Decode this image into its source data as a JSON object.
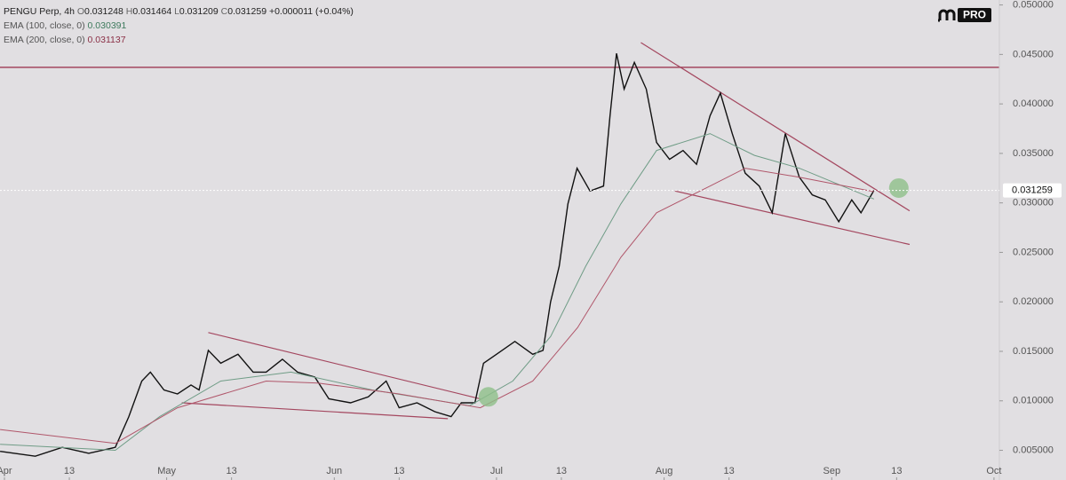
{
  "chart_data": {
    "type": "line",
    "header": {
      "symbol": "PENGU Perp, 4h",
      "o_label": "O",
      "o": "0.031248",
      "h_label": "H",
      "h": "0.031464",
      "l_label": "L",
      "l": "0.031209",
      "c_label": "C",
      "c": "0.031259",
      "change": "+0.000011 (+0.04%)"
    },
    "ema_labels": [
      {
        "name": "EMA (100, close, 0)",
        "value": "0.030391"
      },
      {
        "name": "EMA (200, close, 0)",
        "value": "0.031137"
      }
    ],
    "logo": "PRO",
    "xlim": [
      -0.82,
      184
    ],
    "ylim": [
      0.002,
      0.0505
    ],
    "xticks": [
      {
        "value": 0,
        "label": "Apr"
      },
      {
        "value": 12,
        "label": "13"
      },
      {
        "value": 30,
        "label": "May"
      },
      {
        "value": 42,
        "label": "13"
      },
      {
        "value": 61,
        "label": "Jun"
      },
      {
        "value": 73,
        "label": "13"
      },
      {
        "value": 91,
        "label": "Jul"
      },
      {
        "value": 103,
        "label": "13"
      },
      {
        "value": 122,
        "label": "Aug"
      },
      {
        "value": 134,
        "label": "13"
      },
      {
        "value": 153,
        "label": "Sep"
      },
      {
        "value": 165,
        "label": "13"
      },
      {
        "value": 183,
        "label": "Oct"
      }
    ],
    "yticks": [
      {
        "value": 0.005,
        "label": "0.005000"
      },
      {
        "value": 0.01,
        "label": "0.010000"
      },
      {
        "value": 0.015,
        "label": "0.015000"
      },
      {
        "value": 0.02,
        "label": "0.020000"
      },
      {
        "value": 0.025,
        "label": "0.025000"
      },
      {
        "value": 0.03,
        "label": "0.030000"
      },
      {
        "value": 0.035,
        "label": "0.035000"
      },
      {
        "value": 0.04,
        "label": "0.040000"
      },
      {
        "value": 0.045,
        "label": "0.045000"
      },
      {
        "value": 0.05,
        "label": "0.050000"
      }
    ],
    "series": [
      {
        "color": "#111111",
        "x": [
          -0.8,
          5.7,
          10.7,
          15.6,
          20.5,
          23,
          25.4,
          27,
          29.5,
          32,
          34.5,
          36,
          37.7,
          40,
          43.2,
          46,
          48.4,
          51.4,
          54.2,
          57.4,
          60,
          64,
          67.3,
          70.6,
          73,
          76.3,
          79.6,
          82.6,
          84.5,
          87,
          88.6,
          91,
          94.4,
          97.7,
          99.6,
          101,
          102.6,
          104.2,
          105.9,
          108.3,
          110.8,
          112,
          113.2,
          114.6,
          116.5,
          118.7,
          120.6,
          123,
          125.5,
          128,
          130.5,
          132.4,
          134.6,
          137,
          139.6,
          142,
          144.4,
          147,
          149.4,
          151.8,
          154.3,
          156.7,
          158.4,
          160.8
        ],
        "values": [
          0.0049,
          0.0044,
          0.0053,
          0.0047,
          0.0053,
          0.0084,
          0.012,
          0.0129,
          0.0111,
          0.0107,
          0.0116,
          0.0111,
          0.0151,
          0.0138,
          0.0147,
          0.0129,
          0.0129,
          0.0142,
          0.0129,
          0.0124,
          0.0102,
          0.0098,
          0.0104,
          0.012,
          0.0093,
          0.0098,
          0.0089,
          0.0084,
          0.0098,
          0.0098,
          0.0138,
          0.0147,
          0.016,
          0.0147,
          0.0151,
          0.02,
          0.0236,
          0.0299,
          0.0335,
          0.0312,
          0.0317,
          0.0388,
          0.0451,
          0.0415,
          0.0442,
          0.0415,
          0.0361,
          0.0344,
          0.0353,
          0.0339,
          0.0388,
          0.0411,
          0.037,
          0.033,
          0.0317,
          0.029,
          0.037,
          0.0326,
          0.0308,
          0.0303,
          0.0281,
          0.0303,
          0.029,
          0.031259
        ]
      },
      {
        "color": "#6f9c86",
        "x": [
          -0.8,
          20.5,
          28.7,
          40,
          53,
          68,
          86,
          94,
          101,
          107.5,
          114,
          120.6,
          130.5,
          138.7,
          147,
          160.8
        ],
        "values": [
          0.0056,
          0.005,
          0.0084,
          0.012,
          0.0129,
          0.0111,
          0.0095,
          0.012,
          0.0165,
          0.0236,
          0.0299,
          0.0353,
          0.037,
          0.0348,
          0.0335,
          0.030391
        ]
      },
      {
        "color": "#b0566a",
        "x": [
          -0.8,
          20.5,
          32,
          48.4,
          58,
          73,
          88,
          97.7,
          106,
          114,
          120.6,
          130.5,
          137,
          147,
          160.8
        ],
        "values": [
          0.0071,
          0.0057,
          0.0093,
          0.012,
          0.0118,
          0.0107,
          0.0093,
          0.012,
          0.0174,
          0.0245,
          0.029,
          0.0317,
          0.0335,
          0.0326,
          0.031137
        ]
      }
    ],
    "trendlines": [
      {
        "x": [
          37.7,
          88
        ],
        "values": [
          0.0169,
          0.0102
        ]
      },
      {
        "x": [
          32.8,
          82
        ],
        "values": [
          0.0098,
          0.0082
        ]
      },
      {
        "x": [
          117.7,
          167.4
        ],
        "values": [
          0.0462,
          0.0292
        ]
      },
      {
        "x": [
          124,
          167.4
        ],
        "values": [
          0.0312,
          0.0258
        ]
      }
    ],
    "trendline_color": "#a4475f",
    "resistance": 0.0437,
    "markers": [
      {
        "x": 89.5,
        "value": 0.0104
      },
      {
        "x": 165.4,
        "value": 0.0315
      }
    ],
    "marker_color": "#8fbf8a",
    "last_price": 0.031259
  }
}
